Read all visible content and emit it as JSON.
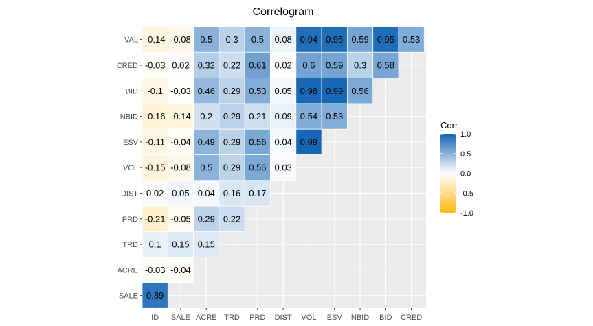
{
  "chart_data": {
    "type": "heatmap",
    "title": "Correlogram",
    "x_categories": [
      "ID",
      "SALE",
      "ACRE",
      "TRD",
      "PRD",
      "DIST",
      "VOL",
      "ESV",
      "NBID",
      "BID",
      "CRED"
    ],
    "y_categories": [
      "VAL",
      "CRED",
      "BID",
      "NBID",
      "ESV",
      "VOL",
      "DIST",
      "PRD",
      "TRD",
      "ACRE",
      "SALE"
    ],
    "values": [
      [
        -0.14,
        -0.08,
        0.5,
        0.3,
        0.5,
        0.08,
        0.94,
        0.95,
        0.59,
        0.95,
        0.53
      ],
      [
        -0.03,
        0.02,
        0.32,
        0.22,
        0.61,
        0.02,
        0.6,
        0.59,
        0.3,
        0.58
      ],
      [
        -0.1,
        -0.03,
        0.46,
        0.29,
        0.53,
        0.05,
        0.98,
        0.99,
        0.56
      ],
      [
        -0.16,
        -0.14,
        0.2,
        0.29,
        0.21,
        0.09,
        0.54,
        0.53
      ],
      [
        -0.11,
        -0.04,
        0.49,
        0.29,
        0.56,
        0.04,
        0.99
      ],
      [
        -0.15,
        -0.08,
        0.5,
        0.29,
        0.56,
        0.03
      ],
      [
        0.02,
        0.05,
        0.04,
        0.16,
        0.17
      ],
      [
        -0.21,
        -0.05,
        0.29,
        0.22
      ],
      [
        0.1,
        0.15,
        0.15
      ],
      [
        -0.03,
        -0.04
      ],
      [
        0.89
      ]
    ],
    "legend": {
      "title": "Corr",
      "ticks": [
        "1.0",
        "0.5",
        "0.0",
        "-0.5",
        "-1.0"
      ],
      "range": [
        -1,
        1
      ],
      "colors": {
        "high": "#1465b4",
        "mid": "#ffffff",
        "low": "#fdb813"
      }
    },
    "grid": true,
    "legend_position": "right"
  }
}
